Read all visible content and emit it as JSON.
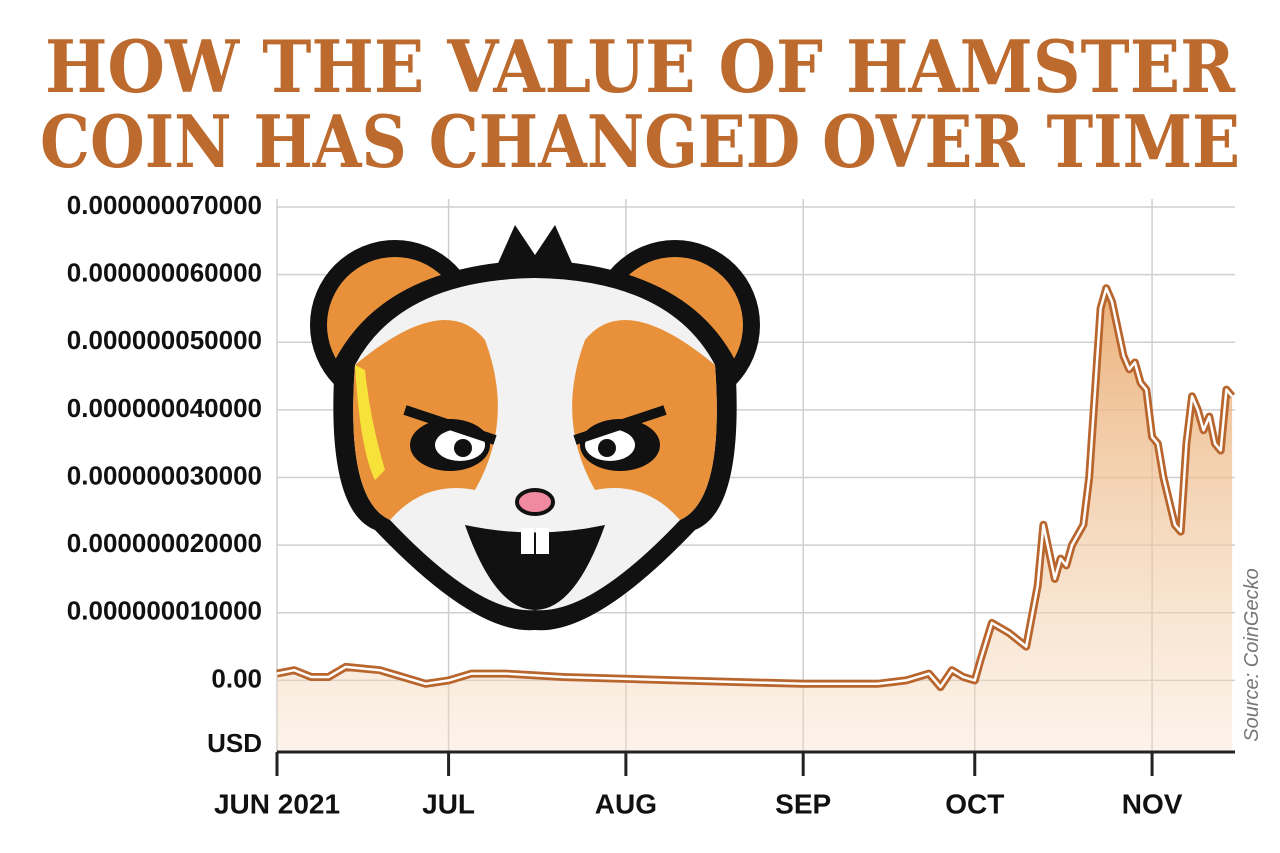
{
  "chart_data": {
    "type": "area-line",
    "title": [
      "HOW THE VALUE OF HAMSTER",
      "COIN HAS CHANGED OVER TIME"
    ],
    "y_label": "USD",
    "source": "Source: CoinGecko",
    "color": "#b8652e",
    "x": [
      0,
      3,
      6,
      9,
      12,
      18,
      22,
      26,
      30,
      34,
      40,
      50,
      70,
      92,
      105,
      110,
      114,
      116,
      118,
      120,
      122,
      123,
      125,
      128,
      131,
      133,
      134,
      136,
      137,
      138,
      139,
      141,
      142,
      144,
      145,
      146,
      148,
      149,
      150,
      151,
      152,
      153,
      154,
      155,
      157,
      158,
      159,
      160,
      161,
      162,
      163,
      164,
      165,
      166,
      167
    ],
    "values": [
      1e-09,
      1.5e-09,
      5e-10,
      5e-10,
      2e-09,
      1.5e-09,
      5e-10,
      -5e-10,
      0,
      1e-09,
      1e-09,
      5e-10,
      0,
      -5e-10,
      -5e-10,
      0,
      1e-09,
      -1e-09,
      1.5e-09,
      5e-10,
      0,
      3e-09,
      8.5e-09,
      7e-09,
      5e-09,
      1.4e-08,
      2.3e-08,
      1.5e-08,
      1.8e-08,
      1.7e-08,
      2e-08,
      2.3e-08,
      3e-08,
      5.5e-08,
      5.8e-08,
      5.6e-08,
      4.8e-08,
      4.6e-08,
      4.7e-08,
      4.4e-08,
      4.3e-08,
      3.6e-08,
      3.5e-08,
      3e-08,
      2.3e-08,
      2.2e-08,
      3.5e-08,
      4.2e-08,
      4e-08,
      3.7e-08,
      3.9e-08,
      3.5e-08,
      3.4e-08,
      4.3e-08,
      4.2e-08
    ],
    "xlim": [
      0,
      167.5
    ],
    "xticks": [
      {
        "value": 0,
        "label": "JUN 2021"
      },
      {
        "value": 30,
        "label": "JUL"
      },
      {
        "value": 61,
        "label": "AUG"
      },
      {
        "value": 92,
        "label": "SEP"
      },
      {
        "value": 122,
        "label": "OCT"
      },
      {
        "value": 153,
        "label": "NOV"
      }
    ],
    "ylim": [
      -1e-08,
      7e-08
    ],
    "yticks": [
      {
        "value": 0,
        "label": "0.00"
      },
      {
        "value": 1e-08,
        "label": "0.000000010000"
      },
      {
        "value": 2e-08,
        "label": "0.000000020000"
      },
      {
        "value": 3e-08,
        "label": "0.000000030000"
      },
      {
        "value": 4e-08,
        "label": "0.000000040000"
      },
      {
        "value": 5e-08,
        "label": "0.000000050000"
      },
      {
        "value": 6e-08,
        "label": "0.000000060000"
      },
      {
        "value": 7e-08,
        "label": "0.000000070000"
      }
    ],
    "grid": true
  }
}
